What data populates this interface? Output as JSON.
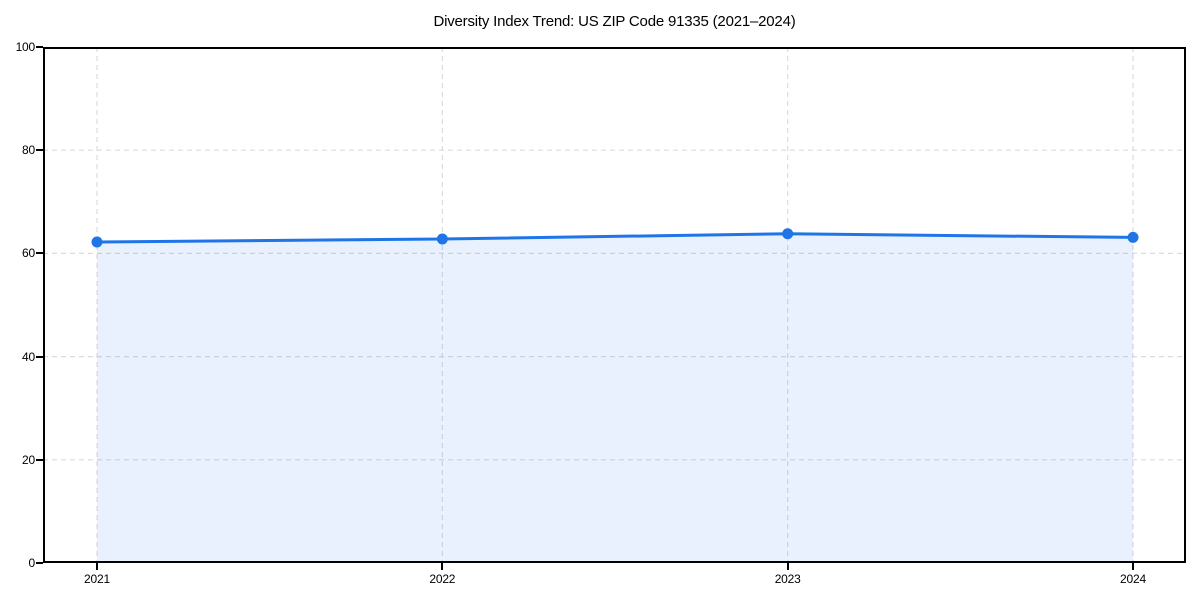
{
  "chart_data": {
    "type": "area",
    "title": "Diversity Index Trend: US ZIP Code 91335 (2021–2024)",
    "categories": [
      "2021",
      "2022",
      "2023",
      "2024"
    ],
    "series": [
      {
        "name": "Diversity Index",
        "values": [
          62.2,
          62.8,
          63.8,
          63.1
        ]
      }
    ],
    "xlabel": "",
    "ylabel": "",
    "ylim": [
      0,
      100
    ],
    "yticks": [
      0,
      20,
      40,
      60,
      80,
      100
    ],
    "grid": true,
    "grid_style": "dashed",
    "legend": "none",
    "colors": {
      "line": "#1f75e8",
      "marker": "#1f75e8",
      "fill_rgba": "rgba(31,117,232,0.10)",
      "grid": "#dcdcdc",
      "axis": "#000000",
      "background": "#ffffff",
      "text": "#000000"
    }
  }
}
